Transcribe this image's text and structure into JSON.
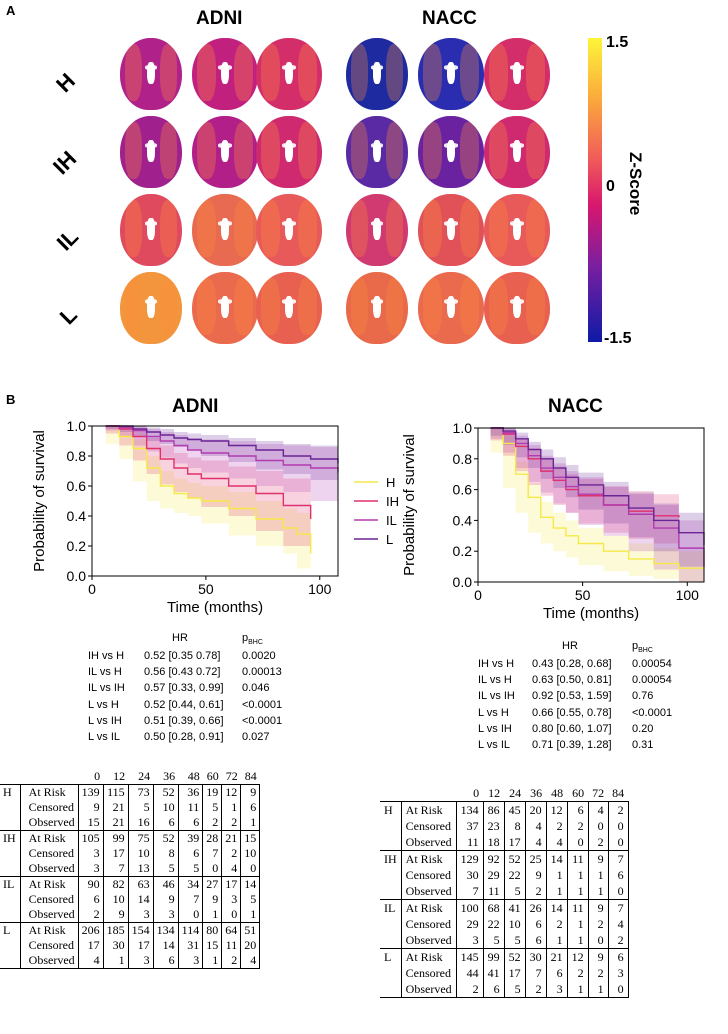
{
  "panel_a": {
    "letter": "A",
    "cohorts": [
      "ADNI",
      "NACC"
    ],
    "rows": [
      "H",
      "IH",
      "IL",
      "L"
    ],
    "colorbar": {
      "max": "1.5",
      "mid": "0",
      "min": "-1.5",
      "title": "Z-Score"
    }
  },
  "panel_b": {
    "letter": "B"
  },
  "colors": {
    "H": "#f5e94a",
    "IH": "#e0306e",
    "IL": "#b23bb0",
    "L": "#6a2495"
  },
  "legend": [
    "H",
    "IH",
    "IL",
    "L"
  ],
  "chart_data": [
    {
      "type": "line",
      "title": "ADNI",
      "xlabel": "Time (months)",
      "ylabel": "Probability of survival",
      "xlim": [
        0,
        108
      ],
      "ylim": [
        0,
        1.0
      ],
      "xticks": [
        "0",
        "50",
        "100"
      ],
      "yticks": [
        "0.0",
        "0.2",
        "0.4",
        "0.6",
        "0.8",
        "1.0"
      ],
      "series": [
        {
          "name": "H",
          "x": [
            6,
            12,
            18,
            24,
            30,
            36,
            42,
            48,
            60,
            72,
            84,
            90,
            96
          ],
          "y": [
            1.0,
            0.93,
            0.85,
            0.72,
            0.6,
            0.55,
            0.52,
            0.5,
            0.45,
            0.38,
            0.32,
            0.28,
            0.15
          ],
          "lo": [
            1.0,
            0.88,
            0.78,
            0.63,
            0.5,
            0.45,
            0.42,
            0.4,
            0.35,
            0.27,
            0.2,
            0.15,
            0.05
          ],
          "hi": [
            1.0,
            0.97,
            0.91,
            0.8,
            0.7,
            0.65,
            0.62,
            0.6,
            0.56,
            0.5,
            0.45,
            0.42,
            0.35
          ]
        },
        {
          "name": "IH",
          "x": [
            6,
            12,
            18,
            24,
            30,
            36,
            42,
            48,
            60,
            72,
            84,
            96
          ],
          "y": [
            1.0,
            0.98,
            0.93,
            0.85,
            0.78,
            0.72,
            0.68,
            0.65,
            0.6,
            0.55,
            0.47,
            0.38
          ],
          "lo": [
            1.0,
            0.95,
            0.87,
            0.77,
            0.68,
            0.61,
            0.56,
            0.52,
            0.46,
            0.4,
            0.3,
            0.2
          ],
          "hi": [
            1.0,
            1.0,
            0.98,
            0.92,
            0.87,
            0.82,
            0.79,
            0.77,
            0.73,
            0.7,
            0.65,
            0.58
          ]
        },
        {
          "name": "IL",
          "x": [
            6,
            12,
            18,
            24,
            30,
            36,
            42,
            48,
            60,
            72,
            84,
            96,
            108
          ],
          "y": [
            1.0,
            0.99,
            0.97,
            0.93,
            0.9,
            0.87,
            0.84,
            0.82,
            0.8,
            0.77,
            0.74,
            0.72,
            0.69
          ],
          "lo": [
            1.0,
            0.97,
            0.93,
            0.87,
            0.83,
            0.79,
            0.75,
            0.72,
            0.69,
            0.65,
            0.6,
            0.56,
            0.5
          ],
          "hi": [
            1.0,
            1.0,
            1.0,
            0.98,
            0.96,
            0.94,
            0.92,
            0.91,
            0.9,
            0.88,
            0.87,
            0.86,
            0.85
          ]
        },
        {
          "name": "L",
          "x": [
            6,
            12,
            18,
            24,
            30,
            36,
            42,
            48,
            60,
            72,
            84,
            96,
            108
          ],
          "y": [
            1.0,
            1.0,
            0.98,
            0.96,
            0.94,
            0.92,
            0.91,
            0.9,
            0.87,
            0.84,
            0.8,
            0.78,
            0.75
          ],
          "lo": [
            1.0,
            0.98,
            0.96,
            0.93,
            0.9,
            0.88,
            0.86,
            0.84,
            0.8,
            0.76,
            0.71,
            0.68,
            0.64
          ],
          "hi": [
            1.0,
            1.0,
            1.0,
            0.99,
            0.98,
            0.96,
            0.95,
            0.94,
            0.92,
            0.9,
            0.88,
            0.87,
            0.85
          ]
        }
      ]
    },
    {
      "type": "line",
      "title": "NACC",
      "xlabel": "Time (months)",
      "ylabel": "Probability of survival",
      "xlim": [
        0,
        108
      ],
      "ylim": [
        0,
        1.0
      ],
      "xticks": [
        "0",
        "50",
        "100"
      ],
      "yticks": [
        "0.0",
        "0.2",
        "0.4",
        "0.6",
        "0.8",
        "1.0"
      ],
      "series": [
        {
          "name": "H",
          "x": [
            6,
            12,
            18,
            24,
            30,
            36,
            42,
            48,
            60,
            72,
            84,
            96,
            108
          ],
          "y": [
            1.0,
            0.9,
            0.7,
            0.55,
            0.42,
            0.35,
            0.3,
            0.25,
            0.2,
            0.15,
            0.12,
            0.09,
            0.08
          ],
          "lo": [
            1.0,
            0.84,
            0.61,
            0.45,
            0.32,
            0.25,
            0.2,
            0.16,
            0.11,
            0.07,
            0.04,
            0.02,
            0.0
          ],
          "hi": [
            1.0,
            0.95,
            0.78,
            0.64,
            0.52,
            0.45,
            0.4,
            0.35,
            0.3,
            0.25,
            0.22,
            0.2,
            0.2
          ]
        },
        {
          "name": "IH",
          "x": [
            6,
            12,
            18,
            24,
            30,
            36,
            42,
            48,
            60,
            72,
            84,
            96
          ],
          "y": [
            1.0,
            0.96,
            0.88,
            0.8,
            0.72,
            0.66,
            0.6,
            0.56,
            0.5,
            0.46,
            0.43,
            0.42
          ],
          "lo": [
            1.0,
            0.92,
            0.82,
            0.72,
            0.63,
            0.56,
            0.5,
            0.45,
            0.38,
            0.32,
            0.28,
            0.25
          ],
          "hi": [
            1.0,
            0.99,
            0.93,
            0.87,
            0.8,
            0.75,
            0.7,
            0.67,
            0.62,
            0.59,
            0.57,
            0.57
          ]
        },
        {
          "name": "IL",
          "x": [
            6,
            12,
            18,
            24,
            30,
            36,
            42,
            48,
            60,
            72,
            84,
            96,
            108
          ],
          "y": [
            1.0,
            0.97,
            0.9,
            0.82,
            0.74,
            0.68,
            0.62,
            0.57,
            0.5,
            0.44,
            0.35,
            0.22,
            0.1
          ],
          "lo": [
            1.0,
            0.93,
            0.84,
            0.74,
            0.65,
            0.58,
            0.51,
            0.45,
            0.37,
            0.3,
            0.2,
            0.08,
            0.0
          ],
          "hi": [
            1.0,
            1.0,
            0.95,
            0.89,
            0.82,
            0.77,
            0.72,
            0.68,
            0.62,
            0.57,
            0.5,
            0.4,
            0.3
          ]
        },
        {
          "name": "L",
          "x": [
            6,
            12,
            18,
            24,
            30,
            36,
            42,
            48,
            60,
            72,
            84,
            96,
            108
          ],
          "y": [
            1.0,
            0.98,
            0.93,
            0.86,
            0.8,
            0.74,
            0.68,
            0.63,
            0.56,
            0.48,
            0.4,
            0.32,
            0.24
          ],
          "lo": [
            1.0,
            0.95,
            0.89,
            0.81,
            0.74,
            0.67,
            0.61,
            0.55,
            0.47,
            0.38,
            0.29,
            0.2,
            0.1
          ],
          "hi": [
            1.0,
            1.0,
            0.97,
            0.91,
            0.86,
            0.81,
            0.76,
            0.71,
            0.65,
            0.58,
            0.51,
            0.45,
            0.38
          ]
        }
      ]
    }
  ],
  "hr_adni": {
    "header_hr": "HR",
    "header_p": "p",
    "header_p_sub": "BHC",
    "rows": [
      {
        "cmp": "IH vs H",
        "hr": "0.52 [0.35 0.78]",
        "p": "0.0020"
      },
      {
        "cmp": "IL vs H",
        "hr": "0.56 [0.43 0.72]",
        "p": "0.00013"
      },
      {
        "cmp": "IL vs IH",
        "hr": "0.57 [0.33, 0.99]",
        "p": "0.046"
      },
      {
        "cmp": "L vs H",
        "hr": "0.52 [0.44, 0.61]",
        "p": "<0.0001"
      },
      {
        "cmp": "L vs IH",
        "hr": "0.51 [0.39, 0.66]",
        "p": "<0.0001"
      },
      {
        "cmp": "L vs IL",
        "hr": "0.50 [0.28, 0.91]",
        "p": "0.027"
      }
    ]
  },
  "hr_nacc": {
    "header_hr": "HR",
    "header_p": "p",
    "header_p_sub": "BHC",
    "rows": [
      {
        "cmp": "IH vs H",
        "hr": "0.43 [0.28, 0.68]",
        "p": "0.00054"
      },
      {
        "cmp": "IL vs H",
        "hr": "0.63 [0.50, 0.81]",
        "p": "0.00054"
      },
      {
        "cmp": "IL vs IH",
        "hr": "0.92 [0.53, 1.59]",
        "p": "0.76"
      },
      {
        "cmp": "L vs H",
        "hr": "0.66 [0.55, 0.78]",
        "p": "<0.0001"
      },
      {
        "cmp": "L vs IH",
        "hr": "0.80 [0.60, 1.07]",
        "p": "0.20"
      },
      {
        "cmp": "L vs IL",
        "hr": "0.71 [0.39, 1.28]",
        "p": "0.31"
      }
    ]
  },
  "risk_adni": {
    "times": [
      "0",
      "12",
      "24",
      "36",
      "48",
      "60",
      "72",
      "84"
    ],
    "groups": [
      {
        "name": "H",
        "rows": [
          {
            "label": "At Risk",
            "values": [
              "139",
              "115",
              "73",
              "52",
              "36",
              "19",
              "12",
              "9"
            ]
          },
          {
            "label": "Censored",
            "values": [
              "9",
              "21",
              "5",
              "10",
              "11",
              "5",
              "1",
              "6"
            ]
          },
          {
            "label": "Observed",
            "values": [
              "15",
              "21",
              "16",
              "6",
              "6",
              "2",
              "2",
              "1"
            ]
          }
        ]
      },
      {
        "name": "IH",
        "rows": [
          {
            "label": "At Risk",
            "values": [
              "105",
              "99",
              "75",
              "52",
              "39",
              "28",
              "21",
              "15"
            ]
          },
          {
            "label": "Censored",
            "values": [
              "3",
              "17",
              "10",
              "8",
              "6",
              "7",
              "2",
              "10"
            ]
          },
          {
            "label": "Observed",
            "values": [
              "3",
              "7",
              "13",
              "5",
              "5",
              "0",
              "4",
              "0"
            ]
          }
        ]
      },
      {
        "name": "IL",
        "rows": [
          {
            "label": "At Risk",
            "values": [
              "90",
              "82",
              "63",
              "46",
              "34",
              "27",
              "17",
              "14"
            ]
          },
          {
            "label": "Censored",
            "values": [
              "6",
              "10",
              "14",
              "9",
              "7",
              "9",
              "3",
              "5"
            ]
          },
          {
            "label": "Observed",
            "values": [
              "2",
              "9",
              "3",
              "3",
              "0",
              "1",
              "0",
              "1"
            ]
          }
        ]
      },
      {
        "name": "L",
        "rows": [
          {
            "label": "At Risk",
            "values": [
              "206",
              "185",
              "154",
              "134",
              "114",
              "80",
              "64",
              "51"
            ]
          },
          {
            "label": "Censored",
            "values": [
              "17",
              "30",
              "17",
              "14",
              "31",
              "15",
              "11",
              "20"
            ]
          },
          {
            "label": "Observed",
            "values": [
              "4",
              "1",
              "3",
              "6",
              "3",
              "1",
              "2",
              "4"
            ]
          }
        ]
      }
    ]
  },
  "risk_nacc": {
    "times": [
      "0",
      "12",
      "24",
      "36",
      "48",
      "60",
      "72",
      "84"
    ],
    "groups": [
      {
        "name": "H",
        "rows": [
          {
            "label": "At Risk",
            "values": [
              "134",
              "86",
              "45",
              "20",
              "12",
              "6",
              "4",
              "2"
            ]
          },
          {
            "label": "Censored",
            "values": [
              "37",
              "23",
              "8",
              "4",
              "2",
              "2",
              "0",
              "0"
            ]
          },
          {
            "label": "Observed",
            "values": [
              "11",
              "18",
              "17",
              "4",
              "4",
              "0",
              "2",
              "0"
            ]
          }
        ]
      },
      {
        "name": "IH",
        "rows": [
          {
            "label": "At Risk",
            "values": [
              "129",
              "92",
              "52",
              "25",
              "14",
              "11",
              "9",
              "7"
            ]
          },
          {
            "label": "Censored",
            "values": [
              "30",
              "29",
              "22",
              "9",
              "1",
              "1",
              "1",
              "6"
            ]
          },
          {
            "label": "Observed",
            "values": [
              "7",
              "11",
              "5",
              "2",
              "1",
              "1",
              "1",
              "0"
            ]
          }
        ]
      },
      {
        "name": "IL",
        "rows": [
          {
            "label": "At Risk",
            "values": [
              "100",
              "68",
              "41",
              "26",
              "14",
              "11",
              "9",
              "7"
            ]
          },
          {
            "label": "Censored",
            "values": [
              "29",
              "22",
              "10",
              "6",
              "2",
              "1",
              "2",
              "4"
            ]
          },
          {
            "label": "Observed",
            "values": [
              "3",
              "5",
              "5",
              "6",
              "1",
              "1",
              "0",
              "2"
            ]
          }
        ]
      },
      {
        "name": "L",
        "rows": [
          {
            "label": "At Risk",
            "values": [
              "145",
              "99",
              "52",
              "30",
              "21",
              "12",
              "9",
              "6"
            ]
          },
          {
            "label": "Censored",
            "values": [
              "44",
              "41",
              "17",
              "7",
              "6",
              "2",
              "2",
              "3"
            ]
          },
          {
            "label": "Observed",
            "values": [
              "2",
              "6",
              "5",
              "2",
              "3",
              "1",
              "1",
              "0"
            ]
          }
        ]
      }
    ]
  }
}
